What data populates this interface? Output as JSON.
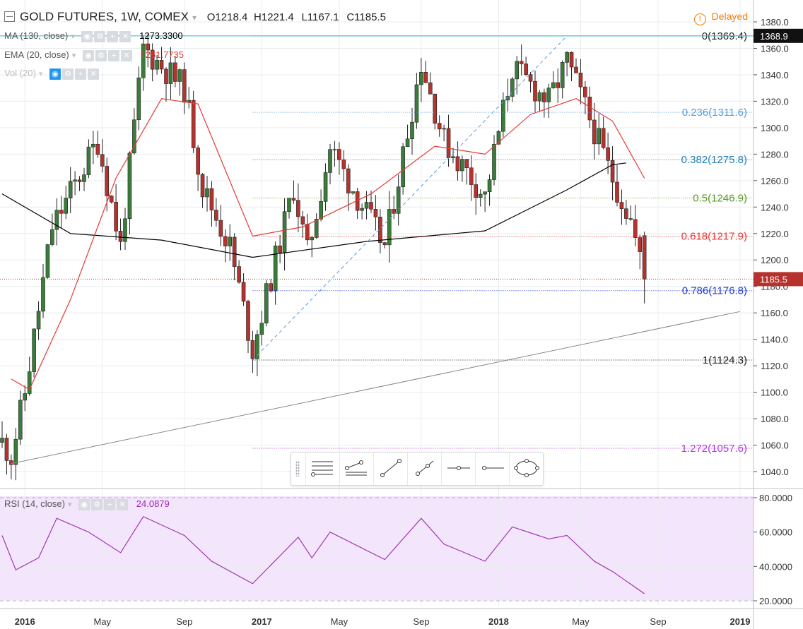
{
  "header": {
    "symbol": "GOLD FUTURES, 1W, COMEX",
    "open": "O1218.4",
    "high": "H1221.4",
    "low": "L1167.1",
    "close": "C1185.5",
    "delayed_label": "Delayed"
  },
  "indicators": {
    "ma": {
      "label": "MA (130, close)",
      "value": "1273.3300",
      "color": "#000000"
    },
    "ema": {
      "label": "EMA (20, close)",
      "value": "1261.7735",
      "color": "#e53935"
    },
    "vol": {
      "label": "Vol (20)"
    }
  },
  "rsi": {
    "label": "RSI (14, close)",
    "value": "24.0879",
    "color": "#9c27b0"
  },
  "price_axis": {
    "ticks": [
      "1380.0",
      "1360.0",
      "1340.0",
      "1320.0",
      "1300.0",
      "1280.0",
      "1260.0",
      "1240.0",
      "1220.0",
      "1200.0",
      "1180.0",
      "1160.0",
      "1140.0",
      "1120.0",
      "1100.0",
      "1080.0",
      "1060.0",
      "1040.0"
    ],
    "last_price": "1185.5",
    "hline_price": "1368.9"
  },
  "rsi_axis": {
    "ticks": [
      "80.0000",
      "60.0000",
      "40.0000",
      "20.0000"
    ]
  },
  "time_axis": {
    "labels": [
      "2016",
      "May",
      "Sep",
      "2017",
      "May",
      "Sep",
      "2018",
      "May",
      "Sep",
      "2019"
    ]
  },
  "fib_levels": [
    {
      "label": "0(1369.4)",
      "color": "#222222"
    },
    {
      "label": "0.236(1311.6)",
      "color": "#5b9bd5"
    },
    {
      "label": "0.382(1275.8)",
      "color": "#2a7fb8"
    },
    {
      "label": "0.5(1246.9)",
      "color": "#5a9a2a"
    },
    {
      "label": "0.618(1217.9)",
      "color": "#e53935"
    },
    {
      "label": "0.786(1176.8)",
      "color": "#1e3dd8"
    },
    {
      "label": "1(1124.3)",
      "color": "#222222"
    },
    {
      "label": "1.272(1057.6)",
      "color": "#b03adf"
    }
  ],
  "colors": {
    "up": "#3a7d3a",
    "down": "#b5322d",
    "rsi_bg": "#f3e5fb",
    "grid": "#e9ecef"
  },
  "chart_data": {
    "type": "candlestick",
    "title": "GOLD FUTURES, 1W, COMEX",
    "timeframe": "1W",
    "y_range": [
      1035,
      1385
    ],
    "anchor_points": [
      {
        "date": "2015-11-30",
        "close": 1062
      },
      {
        "date": "2015-12-14",
        "close": 1052
      },
      {
        "date": "2016-01-04",
        "close": 1100
      },
      {
        "date": "2016-02-15",
        "close": 1225
      },
      {
        "date": "2016-04-25",
        "close": 1290
      },
      {
        "date": "2016-05-30",
        "close": 1210
      },
      {
        "date": "2016-07-04",
        "close": 1360
      },
      {
        "date": "2016-09-05",
        "close": 1330
      },
      {
        "date": "2016-10-03",
        "close": 1255
      },
      {
        "date": "2016-11-14",
        "close": 1210
      },
      {
        "date": "2016-12-19",
        "close": 1132
      },
      {
        "date": "2017-02-20",
        "close": 1255
      },
      {
        "date": "2017-03-13",
        "close": 1205
      },
      {
        "date": "2017-04-17",
        "close": 1285
      },
      {
        "date": "2017-07-10",
        "close": 1210
      },
      {
        "date": "2017-09-04",
        "close": 1350
      },
      {
        "date": "2017-10-09",
        "close": 1290
      },
      {
        "date": "2017-12-11",
        "close": 1248
      },
      {
        "date": "2018-01-22",
        "close": 1345
      },
      {
        "date": "2018-03-19",
        "close": 1320
      },
      {
        "date": "2018-04-16",
        "close": 1350
      },
      {
        "date": "2018-05-28",
        "close": 1298
      },
      {
        "date": "2018-06-18",
        "close": 1270
      },
      {
        "date": "2018-07-23",
        "close": 1230
      },
      {
        "date": "2018-08-13",
        "close": 1185.5
      }
    ],
    "last_bar": {
      "open": 1218.4,
      "high": 1221.4,
      "low": 1167.1,
      "close": 1185.5
    },
    "ma130": [
      {
        "date": "2015-11-30",
        "value": 1250
      },
      {
        "date": "2016-03-14",
        "value": 1220
      },
      {
        "date": "2016-08-01",
        "value": 1215
      },
      {
        "date": "2016-12-19",
        "value": 1202
      },
      {
        "date": "2017-06-12",
        "value": 1214
      },
      {
        "date": "2017-12-11",
        "value": 1222
      },
      {
        "date": "2018-04-16",
        "value": 1253
      },
      {
        "date": "2018-06-25",
        "value": 1272
      },
      {
        "date": "2018-07-16",
        "value": 1273.33
      }
    ],
    "ema20": [
      {
        "date": "2015-12-14",
        "value": 1110
      },
      {
        "date": "2016-01-11",
        "value": 1102
      },
      {
        "date": "2016-03-14",
        "value": 1170
      },
      {
        "date": "2016-05-23",
        "value": 1262
      },
      {
        "date": "2016-08-01",
        "value": 1322
      },
      {
        "date": "2016-09-26",
        "value": 1318
      },
      {
        "date": "2016-12-19",
        "value": 1218
      },
      {
        "date": "2017-03-06",
        "value": 1225
      },
      {
        "date": "2017-06-19",
        "value": 1250
      },
      {
        "date": "2017-09-25",
        "value": 1286
      },
      {
        "date": "2017-12-11",
        "value": 1280
      },
      {
        "date": "2018-02-19",
        "value": 1310
      },
      {
        "date": "2018-04-30",
        "value": 1322
      },
      {
        "date": "2018-06-25",
        "value": 1305
      },
      {
        "date": "2018-08-13",
        "value": 1261.77
      }
    ],
    "rsi14": [
      {
        "date": "2015-11-30",
        "value": 58
      },
      {
        "date": "2015-12-21",
        "value": 38
      },
      {
        "date": "2016-01-25",
        "value": 45
      },
      {
        "date": "2016-02-22",
        "value": 68
      },
      {
        "date": "2016-04-11",
        "value": 60
      },
      {
        "date": "2016-05-30",
        "value": 48
      },
      {
        "date": "2016-07-04",
        "value": 69
      },
      {
        "date": "2016-09-05",
        "value": 58
      },
      {
        "date": "2016-10-17",
        "value": 43
      },
      {
        "date": "2016-12-19",
        "value": 30
      },
      {
        "date": "2017-02-27",
        "value": 57
      },
      {
        "date": "2017-03-20",
        "value": 45
      },
      {
        "date": "2017-04-17",
        "value": 60
      },
      {
        "date": "2017-07-10",
        "value": 44
      },
      {
        "date": "2017-09-04",
        "value": 68
      },
      {
        "date": "2017-10-09",
        "value": 53
      },
      {
        "date": "2017-12-11",
        "value": 43
      },
      {
        "date": "2018-01-22",
        "value": 63
      },
      {
        "date": "2018-03-19",
        "value": 56
      },
      {
        "date": "2018-04-16",
        "value": 58
      },
      {
        "date": "2018-05-28",
        "value": 43
      },
      {
        "date": "2018-06-25",
        "value": 37
      },
      {
        "date": "2018-08-13",
        "value": 24.09
      }
    ],
    "fibonacci": {
      "anchor_low": {
        "date": "2016-12-19",
        "price": 1124.3
      },
      "anchor_high": {
        "date": "2018-04-16",
        "price": 1369.4
      },
      "levels": [
        {
          "ratio": 0,
          "price": 1369.4
        },
        {
          "ratio": 0.236,
          "price": 1311.6
        },
        {
          "ratio": 0.382,
          "price": 1275.8
        },
        {
          "ratio": 0.5,
          "price": 1246.9
        },
        {
          "ratio": 0.618,
          "price": 1217.9
        },
        {
          "ratio": 0.786,
          "price": 1176.8
        },
        {
          "ratio": 1,
          "price": 1124.3
        },
        {
          "ratio": 1.272,
          "price": 1057.6
        }
      ]
    },
    "trendline": {
      "from": {
        "date": "2015-12-14",
        "price": 1046
      },
      "to": {
        "date": "2019-01-07",
        "price": 1161
      }
    },
    "rsi_range": [
      15,
      85
    ]
  }
}
